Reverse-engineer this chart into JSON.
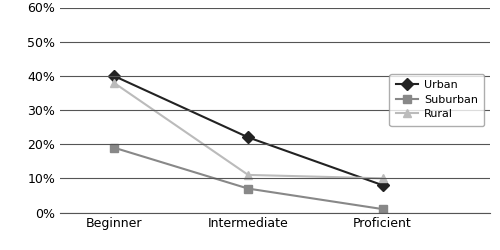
{
  "categories": [
    "Beginner",
    "Intermediate",
    "Proficient"
  ],
  "series": [
    {
      "label": "Urban",
      "values": [
        0.4,
        0.22,
        0.08
      ],
      "color": "#222222",
      "marker": "D",
      "marker_color": "#222222",
      "linewidth": 1.5
    },
    {
      "label": "Suburban",
      "values": [
        0.19,
        0.07,
        0.01
      ],
      "color": "#888888",
      "marker": "s",
      "marker_color": "#888888",
      "linewidth": 1.5
    },
    {
      "label": "Rural",
      "values": [
        0.38,
        0.11,
        0.1
      ],
      "color": "#bbbbbb",
      "marker": "^",
      "marker_color": "#bbbbbb",
      "linewidth": 1.5
    }
  ],
  "ylim": [
    0.0,
    0.6
  ],
  "yticks": [
    0.0,
    0.1,
    0.2,
    0.3,
    0.4,
    0.5,
    0.6
  ],
  "ytick_labels": [
    "0%",
    "10%",
    "20%",
    "30%",
    "40%",
    "50%",
    "60%"
  ],
  "background_color": "#ffffff",
  "plot_bg_color": "#ffffff",
  "grid_color": "#555555",
  "marker_size": 6,
  "tick_fontsize": 9,
  "legend_fontsize": 8
}
